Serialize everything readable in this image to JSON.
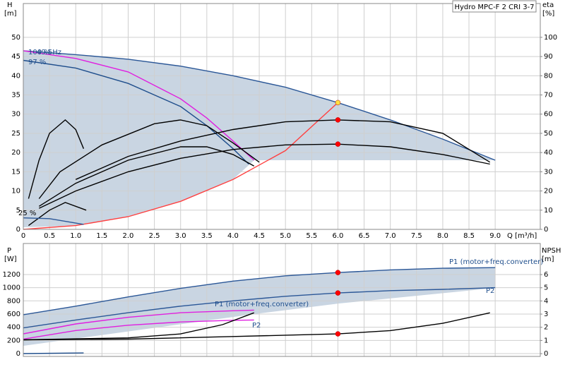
{
  "title": "Hydro MPC-F 2 CRI 3-7",
  "chart_data": [
    {
      "type": "line",
      "y_label": "H",
      "y_unit": "[m]",
      "y2_label": "eta",
      "y2_unit": "[%]",
      "x_label": "Q [m³/h]",
      "xlim": [
        0,
        9.86
      ],
      "ylim": [
        0,
        58.8
      ],
      "y2lim": [
        0,
        117.6
      ],
      "grid": true,
      "xticks": [
        0,
        0.5,
        {
          "value": 1,
          "label": "1.0"
        },
        1.5,
        {
          "value": 2,
          "label": "2.0"
        },
        2.5,
        {
          "value": 3,
          "label": "3.0"
        },
        3.5,
        {
          "value": 4,
          "label": "4.0"
        },
        4.5,
        {
          "value": 5,
          "label": "5.0"
        },
        5.5,
        {
          "value": 6,
          "label": "6.0"
        },
        6.5,
        {
          "value": 7,
          "label": "7.0"
        },
        7.5,
        {
          "value": 8,
          "label": "8.0"
        },
        8.5,
        {
          "value": 9,
          "label": "9.0"
        }
      ],
      "yticks": [
        0,
        5,
        10,
        15,
        20,
        25,
        30,
        35,
        40,
        45,
        50
      ],
      "y2ticks": [
        0,
        10,
        20,
        30,
        40,
        50,
        60,
        70,
        80,
        90,
        100
      ],
      "annotations": [
        "49.5Hz",
        "100 %",
        "97 %",
        "25 %"
      ],
      "series": [
        {
          "color": "#2b5797",
          "x": [
            0,
            1,
            2,
            3,
            4,
            5,
            6,
            7,
            8,
            9
          ],
          "values": [
            46.5,
            45.5,
            44.3,
            42.5,
            40,
            37,
            33,
            28.5,
            23.5,
            18
          ]
        },
        {
          "color": "#1f4e8c",
          "x": [
            0,
            1,
            2,
            3,
            3.5,
            4,
            4.3
          ],
          "values": [
            44,
            42,
            38,
            32,
            27,
            21,
            17
          ]
        },
        {
          "color": "#e020e0",
          "x": [
            0,
            1,
            2,
            3,
            3.5,
            4,
            4.4
          ],
          "values": [
            46.5,
            44.5,
            41,
            34,
            29,
            23,
            18
          ]
        },
        {
          "color": "#ff4040",
          "x": [
            0,
            1,
            2,
            3,
            4,
            5,
            6
          ],
          "values": [
            0,
            1,
            3.3,
            7.3,
            13,
            20.5,
            33
          ]
        },
        {
          "color": "#000000",
          "x": [
            0.3,
            1,
            2,
            3,
            4,
            5,
            6,
            7,
            8,
            8.9
          ],
          "values": [
            5.5,
            10,
            15,
            18.5,
            20.8,
            22,
            22.2,
            21.5,
            19.5,
            17
          ]
        },
        {
          "color": "#000000",
          "x": [
            1,
            2,
            3,
            4,
            5,
            6,
            7,
            8,
            8.9
          ],
          "values": [
            13,
            19,
            23,
            26,
            28,
            28.5,
            28,
            25,
            17.5
          ]
        },
        {
          "color": "#000000",
          "x": [
            0.3,
            0.7,
            1.5,
            2.5,
            3,
            3.5,
            4,
            4.5
          ],
          "values": [
            8,
            15,
            22,
            27.5,
            28.5,
            27,
            22.5,
            17.5
          ]
        },
        {
          "color": "#000000",
          "x": [
            0.3,
            1,
            2,
            3,
            3.5,
            4,
            4.4
          ],
          "values": [
            6,
            12,
            18,
            21.5,
            21.5,
            19.5,
            16.5
          ]
        },
        {
          "color": "#000000",
          "x": [
            0.1,
            0.3,
            0.5,
            0.8,
            1,
            1.15
          ],
          "values": [
            8,
            18,
            25,
            28.5,
            26,
            21
          ]
        },
        {
          "color": "#000000",
          "x": [
            0.1,
            0.5,
            0.8,
            1.2
          ],
          "values": [
            1,
            5,
            7,
            5
          ]
        },
        {
          "color": "#2b5797",
          "x": [
            0,
            0.5,
            1.15
          ],
          "values": [
            3,
            2.8,
            1.3
          ]
        }
      ],
      "points": [
        {
          "x": 6,
          "y": 33,
          "color": "#ffe040"
        },
        {
          "x": 6,
          "y": 28.5,
          "color": "#ff0000"
        },
        {
          "x": 6,
          "y": 22.2,
          "color": "#ff0000"
        }
      ]
    },
    {
      "type": "line",
      "y_label": "P",
      "y_unit": "[W]",
      "y2_label": "NPSH",
      "y2_unit": "[m]",
      "ylim": [
        -43,
        1671
      ],
      "y2lim": [
        -0.21,
        8.36
      ],
      "grid": true,
      "yticks": [
        0,
        200,
        400,
        600,
        800,
        1000,
        1200
      ],
      "y2ticks": [
        0,
        1,
        2,
        3,
        4,
        5,
        6
      ],
      "annotations": [
        "P1 (motor+freq.converter)",
        "P2",
        "P1 (motor+freq.converter)",
        "P2"
      ],
      "series": [
        {
          "color": "#2b5797",
          "x": [
            0,
            1,
            2,
            3,
            4,
            5,
            6,
            7,
            8,
            9
          ],
          "values": [
            590,
            720,
            860,
            990,
            1100,
            1180,
            1230,
            1270,
            1295,
            1305
          ]
        },
        {
          "color": "#2b5797",
          "x": [
            0,
            1,
            2,
            3,
            4,
            5,
            6,
            7,
            8,
            9
          ],
          "values": [
            390,
            510,
            620,
            720,
            800,
            870,
            920,
            955,
            975,
            1000
          ]
        },
        {
          "color": "#e020e0",
          "x": [
            0,
            1,
            2,
            3,
            4,
            4.4
          ],
          "values": [
            300,
            450,
            550,
            620,
            650,
            660
          ]
        },
        {
          "color": "#e020e0",
          "x": [
            0,
            1,
            2,
            3,
            4,
            4.4
          ],
          "values": [
            220,
            350,
            430,
            480,
            505,
            510
          ]
        },
        {
          "color": "#000000",
          "axis": "y2",
          "x": [
            0,
            2,
            4,
            6,
            7,
            8,
            8.9
          ],
          "values": [
            1.05,
            1.1,
            1.3,
            1.5,
            1.75,
            2.3,
            3.1
          ]
        },
        {
          "color": "#000000",
          "axis": "y2",
          "x": [
            0,
            2,
            3,
            3.8,
            4.4
          ],
          "values": [
            1.05,
            1.2,
            1.5,
            2.2,
            3.1
          ]
        },
        {
          "color": "#1f4e8c",
          "x": [
            0,
            1.15
          ],
          "values": [
            0,
            10
          ]
        }
      ],
      "points": [
        {
          "x": 6,
          "y": 1230,
          "color": "#ff0000"
        },
        {
          "x": 6,
          "y": 920,
          "color": "#ff0000"
        },
        {
          "x": 6,
          "y": 1.5,
          "color": "#ff0000",
          "axis": "y2"
        }
      ]
    }
  ]
}
